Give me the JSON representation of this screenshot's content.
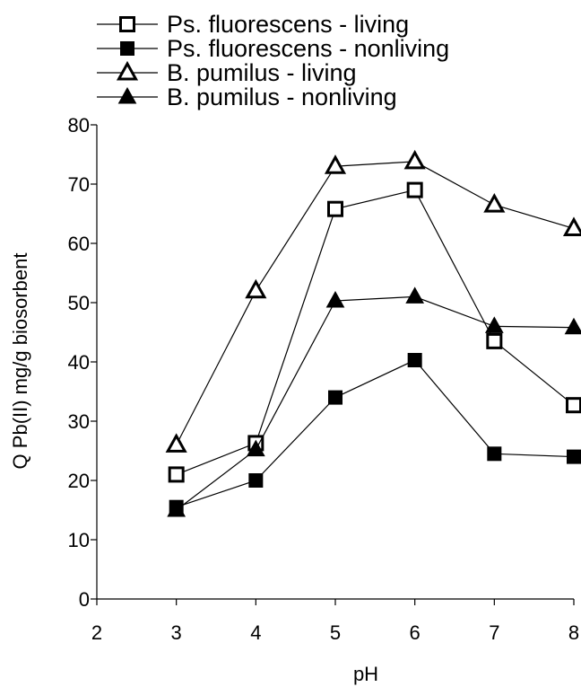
{
  "chart_data": {
    "type": "line",
    "title": "",
    "xlabel": "pH",
    "ylabel": "Q Pb(II) mg/g biosorbent",
    "xlim": [
      2,
      8
    ],
    "ylim": [
      0,
      80
    ],
    "x_ticks": [
      "2",
      "3",
      "4",
      "5",
      "6",
      "7",
      "8"
    ],
    "y_ticks": [
      "0",
      "10",
      "20",
      "30",
      "40",
      "50",
      "60",
      "70",
      "80"
    ],
    "grid": false,
    "legend_position": "top-left",
    "series": [
      {
        "name": "Ps. fluorescens - living",
        "marker": "open-square",
        "x": [
          3,
          4,
          5,
          6,
          7,
          8
        ],
        "values": [
          21,
          26.3,
          65.8,
          69,
          43.5,
          32.7
        ]
      },
      {
        "name": "Ps. fluorescens - nonliving",
        "marker": "filled-square",
        "x": [
          3,
          4,
          5,
          6,
          7,
          8
        ],
        "values": [
          15.5,
          20,
          34,
          40.3,
          24.5,
          24
        ]
      },
      {
        "name": "B. pumilus - living",
        "marker": "open-triangle",
        "x": [
          3,
          4,
          5,
          6,
          7,
          8
        ],
        "values": [
          26,
          52,
          73,
          73.8,
          66.5,
          62.5
        ]
      },
      {
        "name": "B. pumilus - nonliving",
        "marker": "filled-triangle",
        "x": [
          3,
          4,
          5,
          6,
          7,
          8
        ],
        "values": [
          15,
          25.2,
          50.3,
          51,
          46,
          45.8
        ]
      }
    ],
    "colors": {
      "line": "#000000",
      "marker": "#000000",
      "background": "#ffffff"
    }
  }
}
